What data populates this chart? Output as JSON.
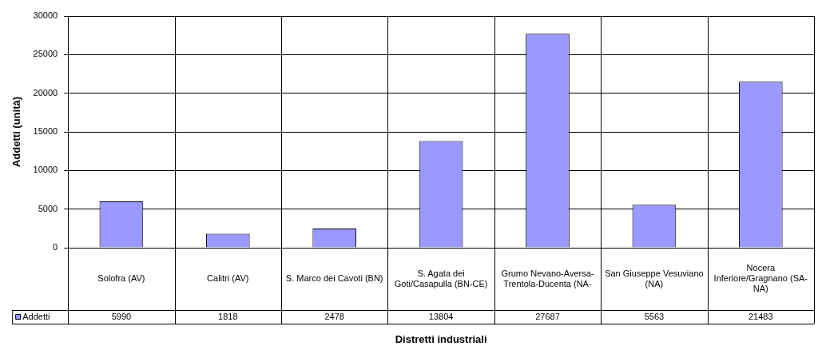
{
  "chart_data": {
    "type": "bar",
    "xlabel": "Distretti industriali",
    "ylabel": "Addetti (unità)",
    "categories": [
      "Solofra (AV)",
      "Calitri (AV)",
      "S. Marco dei Cavoti (BN)",
      "S. Agata dei Goti/Casapulla (BN-CE)",
      "Grumo Nevano-Aversa-Trentola-Ducenta (NA-",
      "San Giuseppe Vesuviano (NA)",
      "Nocera Inferiore/Gragnano (SA-NA)"
    ],
    "series": [
      {
        "name": "Addetti",
        "color": "#9999ff",
        "values": [
          5990,
          1818,
          2478,
          13804,
          27687,
          5563,
          21483
        ]
      }
    ],
    "ylim": [
      0,
      30000
    ],
    "yticks": [
      0,
      5000,
      10000,
      15000,
      20000,
      25000,
      30000
    ],
    "grid": true,
    "data_labels": true
  }
}
